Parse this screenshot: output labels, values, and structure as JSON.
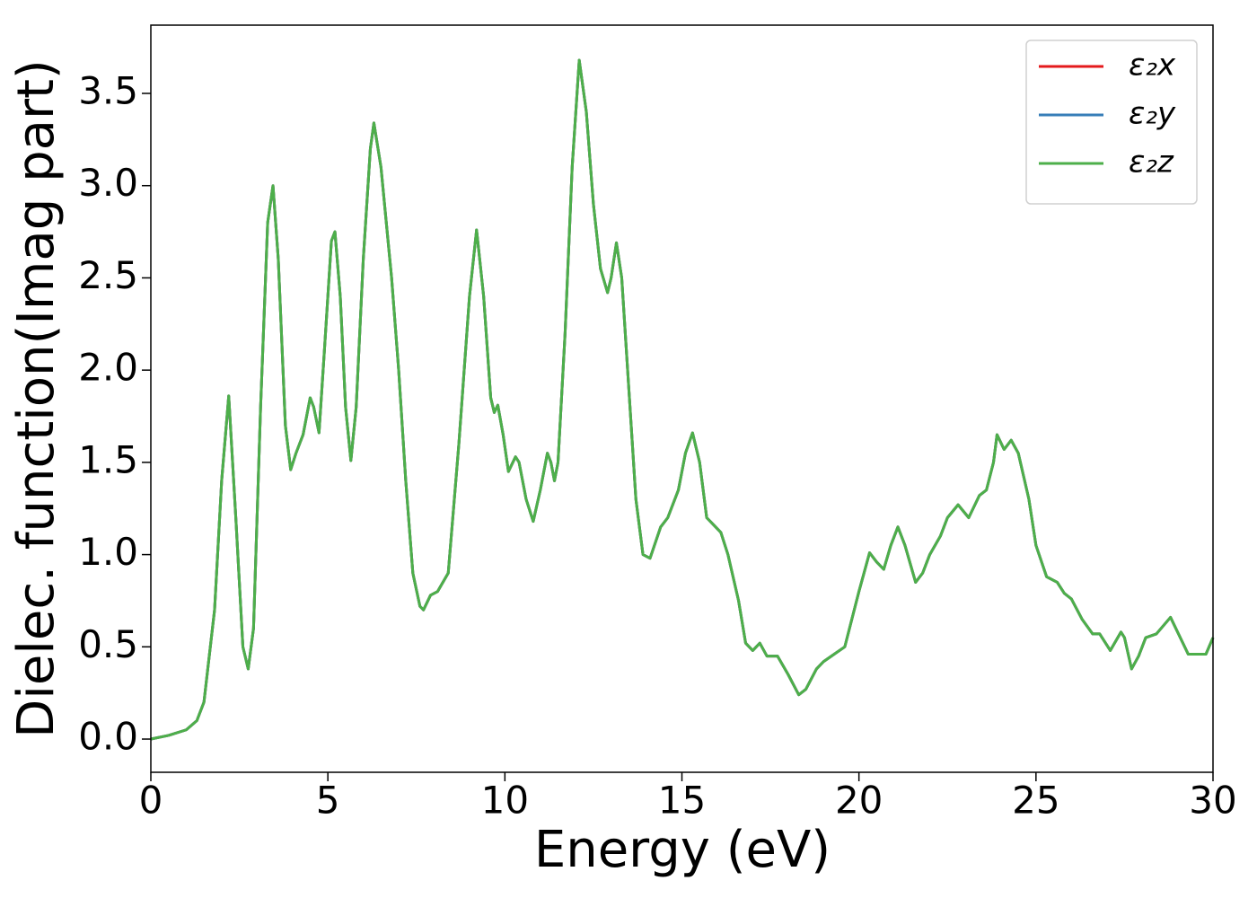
{
  "chart_data": {
    "type": "line",
    "xlabel": "Energy (eV)",
    "ylabel": "Dielec. function(Imag part)",
    "x": [
      0,
      0.5,
      1,
      1.3,
      1.5,
      1.8,
      2.0,
      2.2,
      2.4,
      2.6,
      2.75,
      2.9,
      3.1,
      3.3,
      3.45,
      3.6,
      3.8,
      3.95,
      4.1,
      4.3,
      4.5,
      4.6,
      4.75,
      4.9,
      5.1,
      5.2,
      5.35,
      5.5,
      5.65,
      5.8,
      6.0,
      6.2,
      6.3,
      6.5,
      6.8,
      7.0,
      7.2,
      7.4,
      7.6,
      7.7,
      7.9,
      8.1,
      8.4,
      8.7,
      9.0,
      9.2,
      9.4,
      9.6,
      9.7,
      9.8,
      9.95,
      10.1,
      10.3,
      10.4,
      10.6,
      10.8,
      11.0,
      11.2,
      11.3,
      11.4,
      11.5,
      11.7,
      11.9,
      12.1,
      12.3,
      12.5,
      12.7,
      12.9,
      13.0,
      13.15,
      13.3,
      13.5,
      13.7,
      13.9,
      14.1,
      14.4,
      14.6,
      14.9,
      15.1,
      15.3,
      15.5,
      15.7,
      15.9,
      16.1,
      16.3,
      16.6,
      16.8,
      17.0,
      17.2,
      17.4,
      17.7,
      18.0,
      18.3,
      18.5,
      18.8,
      19.0,
      19.3,
      19.6,
      20.0,
      20.3,
      20.5,
      20.7,
      20.9,
      21.1,
      21.3,
      21.6,
      21.8,
      22.0,
      22.3,
      22.5,
      22.8,
      23.1,
      23.4,
      23.6,
      23.8,
      23.9,
      24.1,
      24.3,
      24.5,
      24.8,
      25.0,
      25.3,
      25.6,
      25.8,
      26.0,
      26.3,
      26.6,
      26.8,
      27.1,
      27.4,
      27.5,
      27.7,
      27.9,
      28.1,
      28.4,
      28.8,
      29.0,
      29.3,
      29.5,
      29.8,
      30.0
    ],
    "series": [
      {
        "name": "ε₂x",
        "color": "#e41a1c",
        "values": [
          0,
          0.02,
          0.05,
          0.1,
          0.2,
          0.7,
          1.4,
          1.86,
          1.2,
          0.5,
          0.38,
          0.6,
          1.8,
          2.8,
          3.0,
          2.6,
          1.7,
          1.46,
          1.55,
          1.65,
          1.85,
          1.8,
          1.66,
          2.1,
          2.7,
          2.75,
          2.4,
          1.8,
          1.51,
          1.8,
          2.6,
          3.2,
          3.34,
          3.1,
          2.5,
          2.0,
          1.4,
          0.9,
          0.72,
          0.7,
          0.78,
          0.8,
          0.9,
          1.6,
          2.4,
          2.76,
          2.4,
          1.85,
          1.77,
          1.81,
          1.65,
          1.45,
          1.53,
          1.5,
          1.3,
          1.18,
          1.35,
          1.55,
          1.5,
          1.4,
          1.5,
          2.2,
          3.1,
          3.68,
          3.4,
          2.9,
          2.55,
          2.42,
          2.5,
          2.69,
          2.5,
          1.9,
          1.3,
          1.0,
          0.98,
          1.15,
          1.2,
          1.35,
          1.55,
          1.66,
          1.5,
          1.2,
          1.16,
          1.12,
          1.0,
          0.75,
          0.52,
          0.48,
          0.52,
          0.45,
          0.45,
          0.35,
          0.24,
          0.27,
          0.38,
          0.42,
          0.46,
          0.5,
          0.8,
          1.01,
          0.96,
          0.92,
          1.05,
          1.15,
          1.05,
          0.85,
          0.9,
          1.0,
          1.1,
          1.2,
          1.27,
          1.2,
          1.32,
          1.35,
          1.5,
          1.65,
          1.57,
          1.62,
          1.55,
          1.3,
          1.05,
          0.88,
          0.85,
          0.79,
          0.76,
          0.65,
          0.57,
          0.57,
          0.48,
          0.58,
          0.55,
          0.38,
          0.45,
          0.55,
          0.57,
          0.66,
          0.58,
          0.46,
          0.46,
          0.46,
          0.55
        ]
      },
      {
        "name": "ε₂y",
        "color": "#377eb8",
        "values": [
          0,
          0.02,
          0.05,
          0.1,
          0.2,
          0.7,
          1.4,
          1.86,
          1.2,
          0.5,
          0.38,
          0.6,
          1.8,
          2.8,
          3.0,
          2.6,
          1.7,
          1.46,
          1.55,
          1.65,
          1.85,
          1.8,
          1.66,
          2.1,
          2.7,
          2.75,
          2.4,
          1.8,
          1.51,
          1.8,
          2.6,
          3.2,
          3.34,
          3.1,
          2.5,
          2.0,
          1.4,
          0.9,
          0.72,
          0.7,
          0.78,
          0.8,
          0.9,
          1.6,
          2.4,
          2.76,
          2.4,
          1.85,
          1.77,
          1.81,
          1.65,
          1.45,
          1.53,
          1.5,
          1.3,
          1.18,
          1.35,
          1.55,
          1.5,
          1.4,
          1.5,
          2.2,
          3.1,
          3.68,
          3.4,
          2.9,
          2.55,
          2.42,
          2.5,
          2.69,
          2.5,
          1.9,
          1.3,
          1.0,
          0.98,
          1.15,
          1.2,
          1.35,
          1.55,
          1.66,
          1.5,
          1.2,
          1.16,
          1.12,
          1.0,
          0.75,
          0.52,
          0.48,
          0.52,
          0.45,
          0.45,
          0.35,
          0.24,
          0.27,
          0.38,
          0.42,
          0.46,
          0.5,
          0.8,
          1.01,
          0.96,
          0.92,
          1.05,
          1.15,
          1.05,
          0.85,
          0.9,
          1.0,
          1.1,
          1.2,
          1.27,
          1.2,
          1.32,
          1.35,
          1.5,
          1.65,
          1.57,
          1.62,
          1.55,
          1.3,
          1.05,
          0.88,
          0.85,
          0.79,
          0.76,
          0.65,
          0.57,
          0.57,
          0.48,
          0.58,
          0.55,
          0.38,
          0.45,
          0.55,
          0.57,
          0.66,
          0.58,
          0.46,
          0.46,
          0.46,
          0.55
        ]
      },
      {
        "name": "ε₂z",
        "color": "#4daf4a",
        "values": [
          0,
          0.02,
          0.05,
          0.1,
          0.2,
          0.7,
          1.4,
          1.86,
          1.2,
          0.5,
          0.38,
          0.6,
          1.8,
          2.8,
          3.0,
          2.6,
          1.7,
          1.46,
          1.55,
          1.65,
          1.85,
          1.8,
          1.66,
          2.1,
          2.7,
          2.75,
          2.4,
          1.8,
          1.51,
          1.8,
          2.6,
          3.2,
          3.34,
          3.1,
          2.5,
          2.0,
          1.4,
          0.9,
          0.72,
          0.7,
          0.78,
          0.8,
          0.9,
          1.6,
          2.4,
          2.76,
          2.4,
          1.85,
          1.77,
          1.81,
          1.65,
          1.45,
          1.53,
          1.5,
          1.3,
          1.18,
          1.35,
          1.55,
          1.5,
          1.4,
          1.5,
          2.2,
          3.1,
          3.68,
          3.4,
          2.9,
          2.55,
          2.42,
          2.5,
          2.69,
          2.5,
          1.9,
          1.3,
          1.0,
          0.98,
          1.15,
          1.2,
          1.35,
          1.55,
          1.66,
          1.5,
          1.2,
          1.16,
          1.12,
          1.0,
          0.75,
          0.52,
          0.48,
          0.52,
          0.45,
          0.45,
          0.35,
          0.24,
          0.27,
          0.38,
          0.42,
          0.46,
          0.5,
          0.8,
          1.01,
          0.96,
          0.92,
          1.05,
          1.15,
          1.05,
          0.85,
          0.9,
          1.0,
          1.1,
          1.2,
          1.27,
          1.2,
          1.32,
          1.35,
          1.5,
          1.65,
          1.57,
          1.62,
          1.55,
          1.3,
          1.05,
          0.88,
          0.85,
          0.79,
          0.76,
          0.65,
          0.57,
          0.57,
          0.48,
          0.58,
          0.55,
          0.38,
          0.45,
          0.55,
          0.57,
          0.66,
          0.58,
          0.46,
          0.46,
          0.46,
          0.55
        ]
      }
    ],
    "xlim": [
      0,
      30
    ],
    "xticks": [
      0,
      5,
      10,
      15,
      20,
      25,
      30
    ],
    "ylim": [
      -0.18,
      3.87
    ],
    "yticks": [
      {
        "value": 0,
        "label": "0.0"
      },
      0.5,
      {
        "value": 1,
        "label": "1.0"
      },
      1.5,
      {
        "value": 2,
        "label": "2.0"
      },
      2.5,
      {
        "value": 3,
        "label": "3.0"
      },
      3.5
    ],
    "legend": "upper right",
    "grid": false
  }
}
